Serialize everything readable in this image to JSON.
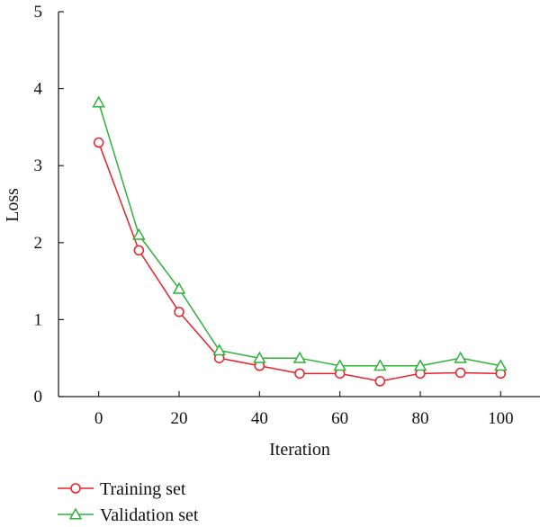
{
  "chart_data": {
    "type": "line",
    "title": "",
    "xlabel": "Iteration",
    "ylabel": "Loss",
    "xlim": [
      -10,
      110
    ],
    "ylim": [
      0,
      5
    ],
    "x_ticks": [
      "0",
      "20",
      "40",
      "60",
      "80",
      "100"
    ],
    "y_ticks": [
      "0",
      "1",
      "2",
      "3",
      "4",
      "5"
    ],
    "grid": false,
    "legend_position": "bottom-left",
    "x": [
      0,
      10,
      20,
      30,
      40,
      50,
      60,
      70,
      80,
      90,
      100
    ],
    "series": [
      {
        "name": "Training set",
        "color": "#e8202a",
        "marker": "circle",
        "values": [
          3.3,
          1.9,
          1.1,
          0.5,
          0.4,
          0.3,
          0.3,
          0.2,
          0.3,
          0.31,
          0.3
        ]
      },
      {
        "name": "Validation set",
        "color": "#2db23a",
        "marker": "triangle",
        "values": [
          3.82,
          2.1,
          1.4,
          0.6,
          0.5,
          0.5,
          0.4,
          0.4,
          0.4,
          0.5,
          0.4
        ]
      }
    ]
  }
}
